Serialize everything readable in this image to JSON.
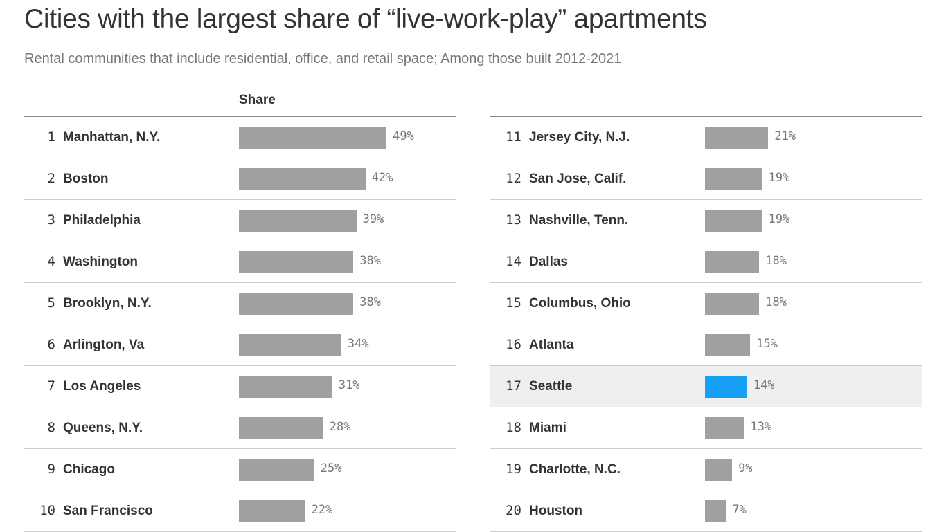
{
  "chart_data": {
    "type": "table",
    "title": "Cities with the largest share of “live-work-play” apartments",
    "subtitle": "Rental communities that include residential, office, and retail space; Among those built 2012-2021",
    "column_header": "Share",
    "bar_color": "#a0a0a0",
    "highlight_color": "#169ff5",
    "highlight_row_bg": "#efefef",
    "highlighted_city": "Seattle",
    "rows": [
      {
        "rank": "1",
        "city": "Manhattan, N.Y.",
        "value": 49,
        "label": "49%"
      },
      {
        "rank": "2",
        "city": "Boston",
        "value": 42,
        "label": "42%"
      },
      {
        "rank": "3",
        "city": "Philadelphia",
        "value": 39,
        "label": "39%"
      },
      {
        "rank": "4",
        "city": "Washington",
        "value": 38,
        "label": "38%"
      },
      {
        "rank": "5",
        "city": "Brooklyn, N.Y.",
        "value": 38,
        "label": "38%"
      },
      {
        "rank": "6",
        "city": "Arlington, Va",
        "value": 34,
        "label": "34%"
      },
      {
        "rank": "7",
        "city": "Los Angeles",
        "value": 31,
        "label": "31%"
      },
      {
        "rank": "8",
        "city": "Queens, N.Y.",
        "value": 28,
        "label": "28%"
      },
      {
        "rank": "9",
        "city": "Chicago",
        "value": 25,
        "label": "25%"
      },
      {
        "rank": "10",
        "city": "San Francisco",
        "value": 22,
        "label": "22%"
      },
      {
        "rank": "11",
        "city": "Jersey City, N.J.",
        "value": 21,
        "label": "21%"
      },
      {
        "rank": "12",
        "city": "San Jose, Calif.",
        "value": 19,
        "label": "19%"
      },
      {
        "rank": "13",
        "city": "Nashville, Tenn.",
        "value": 19,
        "label": "19%"
      },
      {
        "rank": "14",
        "city": "Dallas",
        "value": 18,
        "label": "18%"
      },
      {
        "rank": "15",
        "city": "Columbus, Ohio",
        "value": 18,
        "label": "18%"
      },
      {
        "rank": "16",
        "city": "Atlanta",
        "value": 15,
        "label": "15%"
      },
      {
        "rank": "17",
        "city": "Seattle",
        "value": 14,
        "label": "14%"
      },
      {
        "rank": "18",
        "city": "Miami",
        "value": 13,
        "label": "13%"
      },
      {
        "rank": "19",
        "city": "Charlotte, N.C.",
        "value": 9,
        "label": "9%"
      },
      {
        "rank": "20",
        "city": "Houston",
        "value": 7,
        "label": "7%"
      }
    ]
  }
}
